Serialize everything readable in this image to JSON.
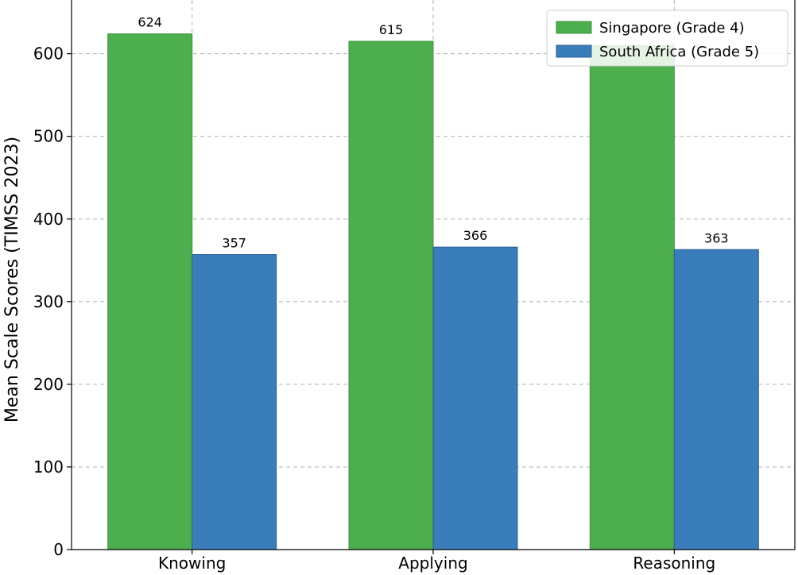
{
  "chart_data": {
    "type": "bar",
    "title": "",
    "xlabel": "",
    "ylabel": "Mean Scale Scores (TIMSS 2023)",
    "ylim": [
      0,
      665
    ],
    "yticks": [
      0,
      100,
      200,
      300,
      400,
      500,
      600
    ],
    "grid": true,
    "legend_position": "top-right",
    "categories": [
      "Knowing",
      "Applying",
      "Reasoning"
    ],
    "series": [
      {
        "name": "Singapore (Grade 4)",
        "values": [
          624,
          615,
          610
        ],
        "labels": [
          "624",
          "615",
          ""
        ],
        "color": "#4cae4c",
        "edge": "#3c963c"
      },
      {
        "name": "South Africa (Grade 5)",
        "values": [
          357,
          366,
          363
        ],
        "labels": [
          "357",
          "366",
          "363"
        ],
        "color": "#3a7dbb",
        "edge": "#2a6197"
      }
    ]
  }
}
